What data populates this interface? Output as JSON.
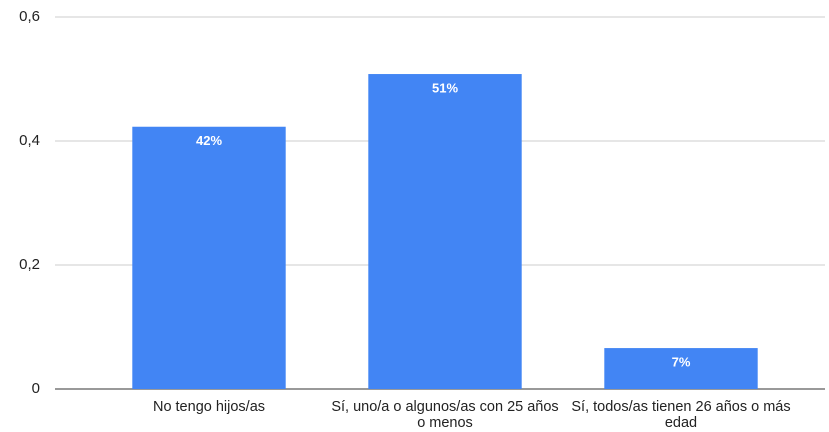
{
  "chart_data": {
    "type": "bar",
    "categories": [
      "No tengo hijos/as",
      "Sí, uno/a o algunos/as con 25 años o menos",
      "Sí, todos/as tienen 26 años o más edad"
    ],
    "values": [
      0.423,
      0.508,
      0.066
    ],
    "value_labels": [
      "42%",
      "51%",
      "7%"
    ],
    "color": "#4285f4",
    "ylim": [
      0,
      0.6
    ],
    "yticks": [
      0,
      {
        "value": 0.2,
        "label": "0,2"
      },
      {
        "value": 0.4,
        "label": "0,4"
      },
      {
        "value": 0.6,
        "label": "0,6"
      }
    ],
    "grid": true
  }
}
